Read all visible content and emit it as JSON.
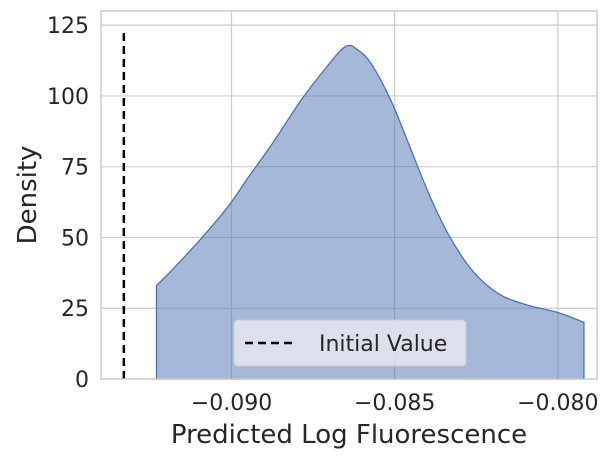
{
  "chart_data": {
    "type": "area",
    "xlabel": "Predicted Log Fluorescence",
    "ylabel": "Density",
    "xlim": [
      -0.094,
      -0.0788
    ],
    "ylim": [
      0,
      130
    ],
    "xticks": [
      -0.09,
      -0.085,
      -0.08
    ],
    "xtick_labels": [
      "−0.090",
      "−0.085",
      "−0.080"
    ],
    "yticks": [
      0,
      25,
      50,
      75,
      100,
      125
    ],
    "ytick_labels": [
      "0",
      "25",
      "50",
      "75",
      "100",
      "125"
    ],
    "grid": true,
    "legend": {
      "position": "bottom-center",
      "entries": [
        "Initial Value"
      ]
    },
    "series": [
      {
        "kind": "density",
        "color": "#4c72b0",
        "points": [
          [
            -0.0923,
            33
          ],
          [
            -0.0917,
            40
          ],
          [
            -0.0909,
            50
          ],
          [
            -0.0901,
            61
          ],
          [
            -0.0895,
            71
          ],
          [
            -0.0887,
            84
          ],
          [
            -0.0879,
            98
          ],
          [
            -0.0871,
            110
          ],
          [
            -0.0865,
            117.5
          ],
          [
            -0.0861,
            116
          ],
          [
            -0.0857,
            111
          ],
          [
            -0.0851,
            98
          ],
          [
            -0.0845,
            81
          ],
          [
            -0.0839,
            64
          ],
          [
            -0.0833,
            50
          ],
          [
            -0.0826,
            38
          ],
          [
            -0.0818,
            30
          ],
          [
            -0.0809,
            26
          ],
          [
            -0.08,
            23.5
          ],
          [
            -0.0792,
            20
          ]
        ]
      },
      {
        "name": "Initial Value",
        "kind": "vline",
        "x": -0.0933,
        "y_top": 124,
        "color": "#000000",
        "style": "dashed"
      }
    ]
  }
}
